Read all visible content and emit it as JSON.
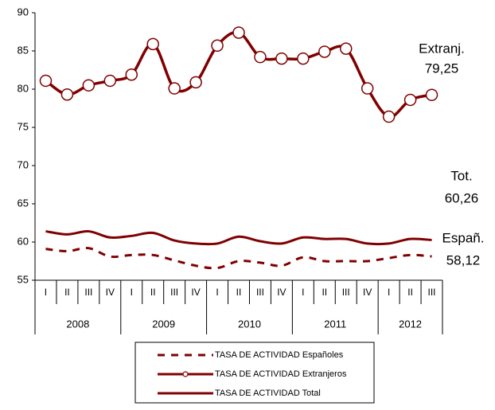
{
  "chart_data": {
    "type": "line",
    "categories": [
      "I",
      "II",
      "III",
      "IV",
      "I",
      "II",
      "III",
      "IV",
      "I",
      "II",
      "III",
      "IV",
      "I",
      "II",
      "III",
      "IV",
      "I",
      "II",
      "III"
    ],
    "groups": [
      "2008",
      "2009",
      "2010",
      "2011",
      "2012"
    ],
    "series": [
      {
        "name": "TASA DE ACTIVIDAD Españoles",
        "color": "#800000",
        "style": "dashed",
        "values": [
          59.1,
          58.8,
          59.2,
          58.1,
          58.3,
          58.3,
          57.6,
          56.9,
          56.6,
          57.5,
          57.3,
          56.9,
          58.0,
          57.5,
          57.5,
          57.5,
          57.9,
          58.3,
          58.12
        ]
      },
      {
        "name": "TASA DE ACTIVIDAD Extranjeros",
        "color": "#800000",
        "style": "markers",
        "values": [
          81.1,
          79.3,
          80.5,
          81.1,
          81.9,
          85.9,
          80.1,
          80.9,
          85.7,
          87.4,
          84.2,
          84.0,
          84.0,
          84.9,
          85.3,
          80.1,
          76.4,
          78.6,
          79.25
        ]
      },
      {
        "name": "TASA DE ACTIVIDAD Total",
        "color": "#800000",
        "style": "solid",
        "values": [
          61.4,
          61.0,
          61.4,
          60.6,
          60.8,
          61.2,
          60.2,
          59.8,
          59.8,
          60.7,
          60.1,
          59.8,
          60.6,
          60.4,
          60.4,
          59.8,
          59.8,
          60.4,
          60.26
        ]
      }
    ],
    "annotations": [
      [
        "Extranj.",
        "79,25"
      ],
      [
        "Tot.",
        "60,26"
      ],
      [
        "Españ.",
        "58,12"
      ]
    ],
    "ylim": [
      55,
      90
    ],
    "yticks": [
      55,
      60,
      65,
      70,
      75,
      80,
      85,
      90
    ],
    "grid": false
  }
}
